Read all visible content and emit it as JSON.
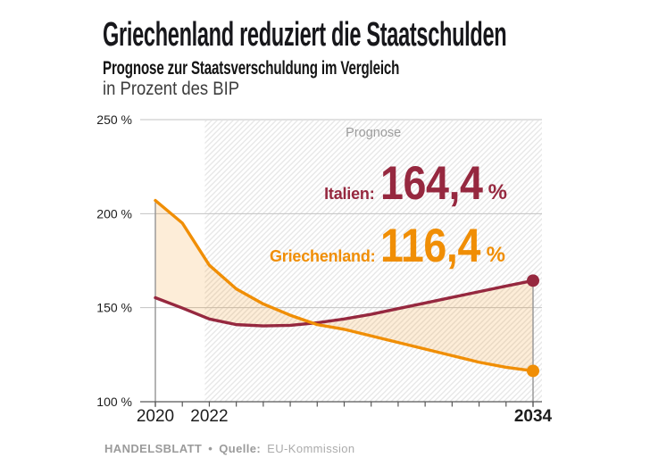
{
  "header": {
    "title": "Griechenland reduziert die Staatschulden",
    "subtitle": "Prognose zur Staatsverschuldung im Vergleich",
    "unit_line": "in Prozent des BIP"
  },
  "chart_data": {
    "type": "line",
    "x": [
      2020,
      2021,
      2022,
      2023,
      2024,
      2025,
      2026,
      2027,
      2028,
      2029,
      2030,
      2031,
      2032,
      2033,
      2034
    ],
    "ylim": [
      100,
      250
    ],
    "yticks": [
      {
        "value": 100,
        "label": "100 %"
      },
      {
        "value": 150,
        "label": "150 %"
      },
      {
        "value": 200,
        "label": "200 %"
      },
      {
        "value": 250,
        "label": "250 %"
      }
    ],
    "xticks": [
      {
        "year": 2020,
        "label": "2020",
        "bold": false
      },
      {
        "year": 2022,
        "label": "2022",
        "bold": false
      },
      {
        "year": 2034,
        "label": "2034",
        "bold": true
      }
    ],
    "prognose": {
      "label": "Prognose",
      "start_year": 2022
    },
    "series": [
      {
        "key": "italien",
        "name": "Italien",
        "color": "#96283f",
        "values": [
          155.3,
          149.8,
          144.0,
          141.0,
          140.3,
          140.6,
          142.0,
          144.0,
          146.5,
          149.5,
          152.5,
          155.5,
          158.5,
          161.5,
          164.4
        ],
        "end_value": 164.4
      },
      {
        "key": "griechenland",
        "name": "Griechenland",
        "color": "#f08e05",
        "values": [
          207.0,
          195.0,
          172.6,
          160.0,
          152.0,
          146.0,
          141.0,
          138.5,
          135.0,
          131.5,
          128.0,
          124.5,
          121.0,
          118.3,
          116.4
        ],
        "end_value": 116.4
      }
    ],
    "colors": {
      "grid": "#c3c3c3",
      "axis": "#565656",
      "boundary": "#949494",
      "hatch": "#e7e7e7",
      "fill_between": "rgba(240,141,10,0.16)",
      "tick_label": "#1d1d1d",
      "prognose_label": "#9d9d9d"
    }
  },
  "annotations": {
    "italien": {
      "label": "Italien:",
      "value": "164,4",
      "unit": "%"
    },
    "griechenland": {
      "label": "Griechenland:",
      "value": "116,4",
      "unit": "%"
    }
  },
  "footer": {
    "brand": "HANDELSBLATT",
    "separator": "•",
    "source_label": "Quelle:",
    "source": "EU-Kommission"
  }
}
